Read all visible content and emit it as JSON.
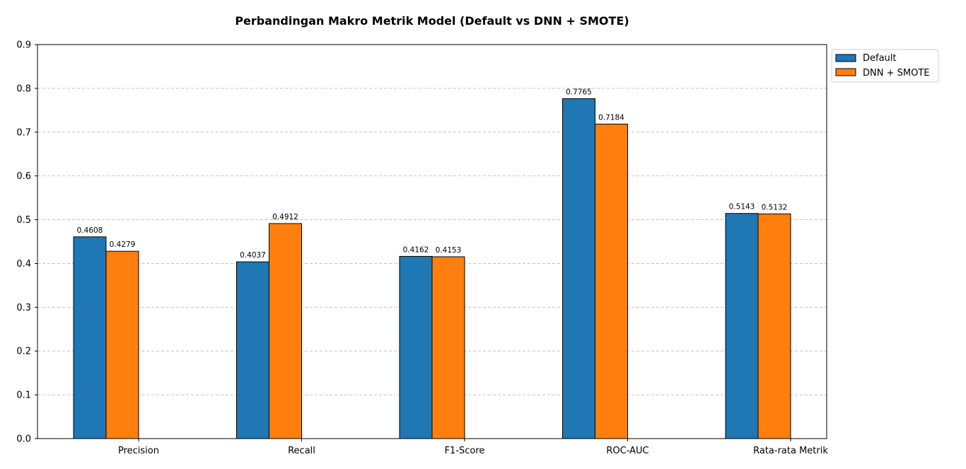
{
  "chart_data": {
    "type": "bar",
    "title": "Perbandingan Makro Metrik Model (Default vs DNN + SMOTE)",
    "xlabel": "",
    "ylabel": "",
    "categories": [
      "Precision",
      "Recall",
      "F1-Score",
      "ROC-AUC",
      "Rata-rata Metrik"
    ],
    "series": [
      {
        "name": "Default",
        "values": [
          0.4608,
          0.4037,
          0.4162,
          0.7765,
          0.5143
        ],
        "labels": [
          "0.4608",
          "0.4037",
          "0.4162",
          "0.7765",
          "0.5143"
        ],
        "color": "#1f77b4"
      },
      {
        "name": "DNN + SMOTE",
        "values": [
          0.4279,
          0.4912,
          0.4153,
          0.7184,
          0.5132
        ],
        "labels": [
          "0.4279",
          "0.4912",
          "0.4153",
          "0.7184",
          "0.5132"
        ],
        "color": "#ff7f0e"
      }
    ],
    "ylim": [
      0,
      0.9
    ],
    "yticks": [
      "0.0",
      "0.1",
      "0.2",
      "0.3",
      "0.4",
      "0.5",
      "0.6",
      "0.7",
      "0.8",
      "0.9"
    ],
    "grid": "y-dashed",
    "legend": "outside top-right"
  }
}
